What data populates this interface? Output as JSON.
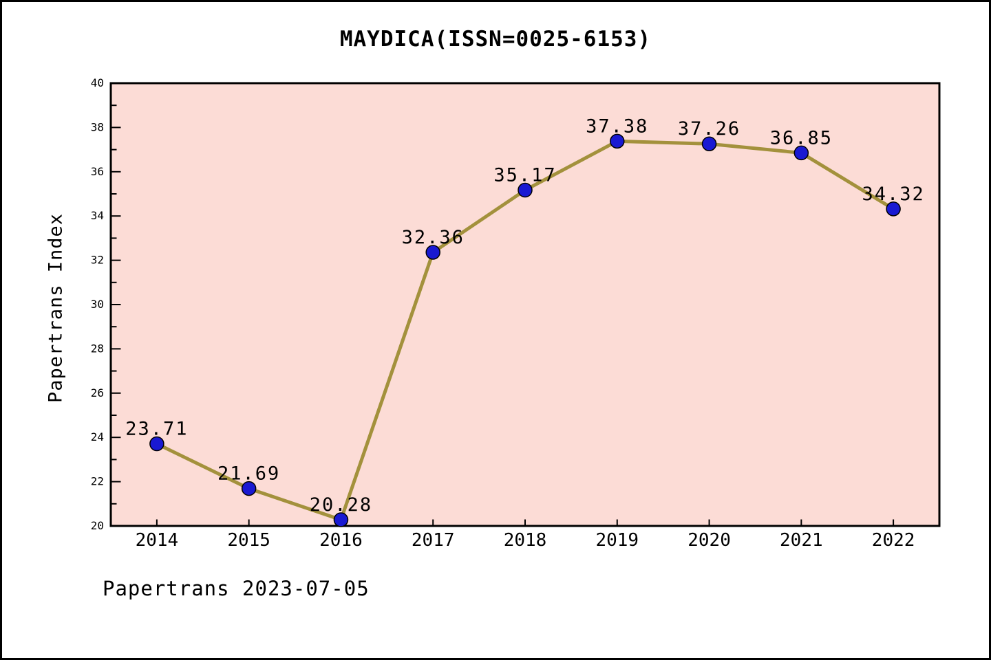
{
  "figure": {
    "title": "MAYDICA(ISSN=0025-6153)",
    "ylabel": "Papertrans Index",
    "footer": "Papertrans 2023-07-05"
  },
  "chart_data": {
    "type": "line",
    "title": "MAYDICA(ISSN=0025-6153)",
    "xlabel": "",
    "ylabel": "Papertrans Index",
    "x": [
      2014,
      2015,
      2016,
      2017,
      2018,
      2019,
      2020,
      2021,
      2022
    ],
    "values": [
      23.71,
      21.69,
      20.28,
      32.36,
      35.17,
      37.38,
      37.26,
      36.85,
      34.32
    ],
    "point_labels": [
      "23.71",
      "21.69",
      "20.28",
      "32.36",
      "35.17",
      "37.38",
      "37.26",
      "36.85",
      "34.32"
    ],
    "xtick_labels": [
      "2014",
      "2015",
      "2016",
      "2017",
      "2018",
      "2019",
      "2020",
      "2021",
      "2022"
    ],
    "ytick_labels": [
      "20",
      "22",
      "24",
      "26",
      "28",
      "30",
      "32",
      "34",
      "36",
      "38",
      "40"
    ],
    "ylim": [
      20,
      40
    ],
    "xlim": [
      2013.5,
      2022.5
    ],
    "ytick_step": 2,
    "yminor_step": 1,
    "grid": false,
    "legend": null,
    "annotation": "Papertrans 2023-07-05",
    "colors": {
      "figure_bg": "#ffffff",
      "plot_bg": "#fcdcd6",
      "line": "#a3913c",
      "marker_fill": "#1919d2",
      "marker_edge": "#000000",
      "axis": "#000000",
      "text": "#000000"
    }
  }
}
